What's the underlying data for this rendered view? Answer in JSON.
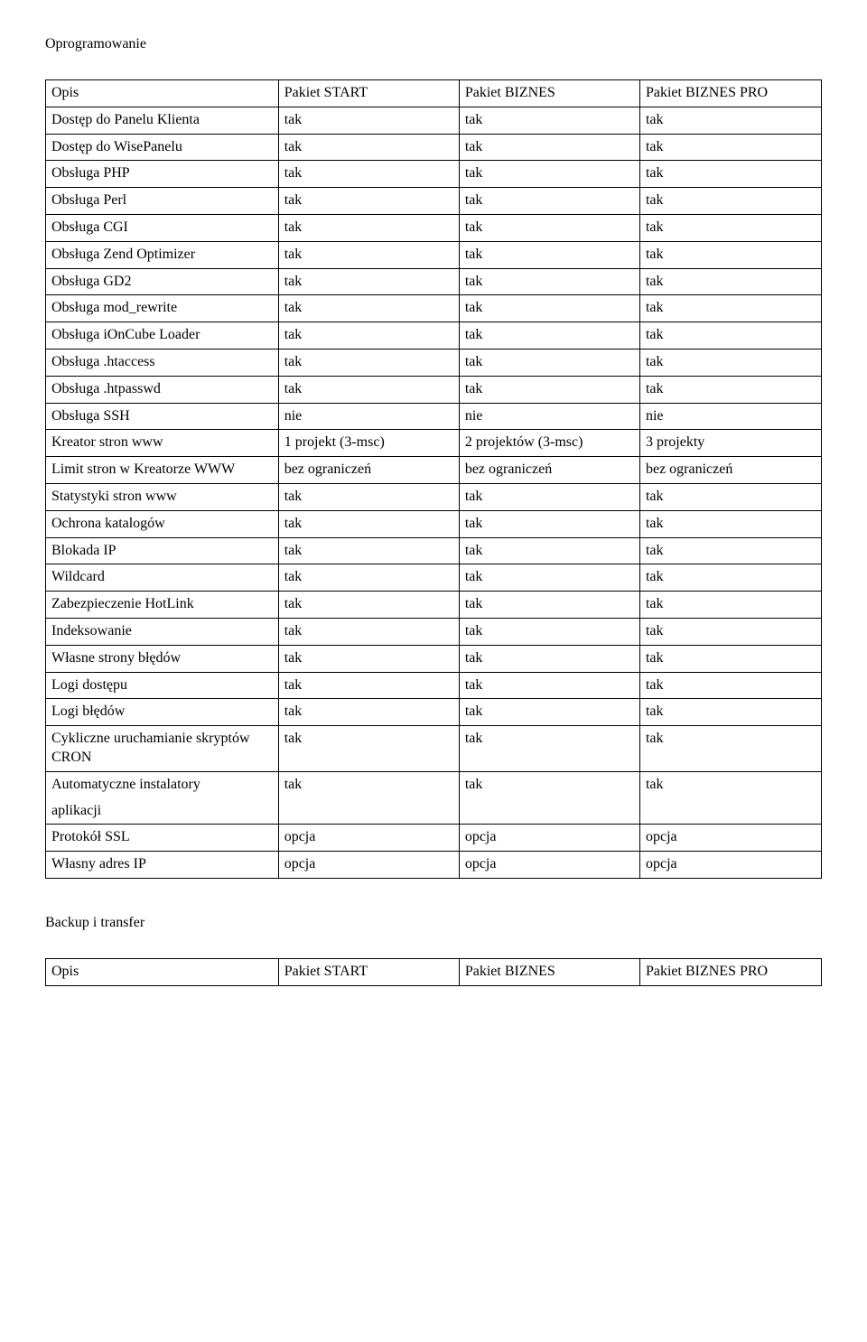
{
  "section1_title": "Oprogramowanie",
  "table1": {
    "header": [
      "Opis",
      "Pakiet START",
      "Pakiet BIZNES",
      "Pakiet BIZNES PRO"
    ],
    "rows_top": [
      [
        "Dostęp do Panelu Klienta",
        "tak",
        "tak",
        "tak"
      ],
      [
        "Dostęp do WisePanelu",
        "tak",
        "tak",
        "tak"
      ],
      [
        "Obsługa PHP",
        "tak",
        "tak",
        "tak"
      ],
      [
        "Obsługa Perl",
        "tak",
        "tak",
        "tak"
      ],
      [
        "Obsługa CGI",
        "tak",
        "tak",
        "tak"
      ],
      [
        "Obsługa Zend Optimizer",
        "tak",
        "tak",
        "tak"
      ],
      [
        "Obsługa GD2",
        "tak",
        "tak",
        "tak"
      ],
      [
        "Obsługa mod_rewrite",
        "tak",
        "tak",
        "tak"
      ],
      [
        "Obsługa iOnCube Loader",
        "tak",
        "tak",
        "tak"
      ],
      [
        "Obsługa .htaccess",
        "tak",
        "tak",
        "tak"
      ],
      [
        "Obsługa .htpasswd",
        "tak",
        "tak",
        "tak"
      ],
      [
        "Obsługa SSH",
        "nie",
        "nie",
        "nie"
      ],
      [
        "Kreator stron www",
        "1 projekt (3-msc)",
        "2 projektów (3-msc)",
        "3 projekty"
      ],
      [
        "Limit stron w Kreatorze WWW",
        "bez ograniczeń",
        "bez ograniczeń",
        "bez ograniczeń"
      ],
      [
        "Statystyki stron www",
        "tak",
        "tak",
        "tak"
      ],
      [
        "Ochrona katalogów",
        "tak",
        "tak",
        "tak"
      ],
      [
        "Blokada IP",
        "tak",
        "tak",
        "tak"
      ],
      [
        "Wildcard",
        "tak",
        "tak",
        "tak"
      ],
      [
        "Zabezpieczenie HotLink",
        "tak",
        "tak",
        "tak"
      ],
      [
        "Indeksowanie",
        "tak",
        "tak",
        "tak"
      ],
      [
        "Własne strony błędów",
        "tak",
        "tak",
        "tak"
      ],
      [
        "Logi dostępu",
        "tak",
        "tak",
        "tak"
      ],
      [
        "Logi błędów",
        "tak",
        "tak",
        "tak"
      ],
      [
        "Cykliczne uruchamianie skryptów CRON",
        "tak",
        "tak",
        "tak"
      ]
    ],
    "split_row_top": [
      "Automatyczne instalatory",
      "tak",
      "tak",
      "tak"
    ],
    "split_row_bottom": [
      "aplikacji",
      "",
      "",
      ""
    ],
    "rows_bottom": [
      [
        "Protokół SSL",
        "opcja",
        "opcja",
        "opcja"
      ],
      [
        "Własny adres IP",
        "opcja",
        "opcja",
        "opcja"
      ]
    ]
  },
  "section2_title": "Backup i transfer",
  "table2": {
    "header": [
      "Opis",
      "Pakiet START",
      "Pakiet BIZNES",
      "Pakiet BIZNES PRO"
    ]
  }
}
